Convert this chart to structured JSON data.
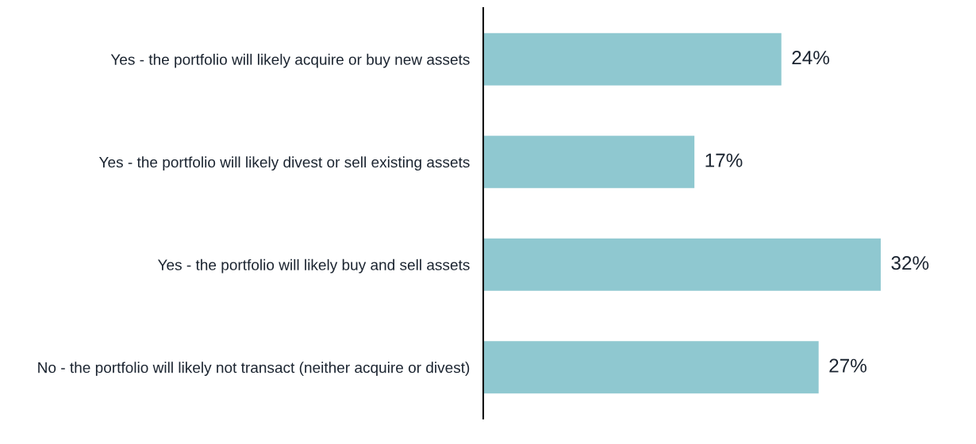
{
  "chart_data": {
    "type": "bar",
    "orientation": "horizontal",
    "categories": [
      "Yes - the portfolio will likely acquire or buy new assets",
      "Yes - the portfolio will likely divest or sell existing assets",
      "Yes - the portfolio will likely buy and sell assets",
      "No - the portfolio will likely not transact (neither acquire or divest)"
    ],
    "values": [
      24,
      17,
      32,
      27
    ],
    "value_labels": [
      "24%",
      "17%",
      "32%",
      "27%"
    ],
    "color": "#8fc8d0",
    "tick_labels": "y",
    "grid": false
  }
}
